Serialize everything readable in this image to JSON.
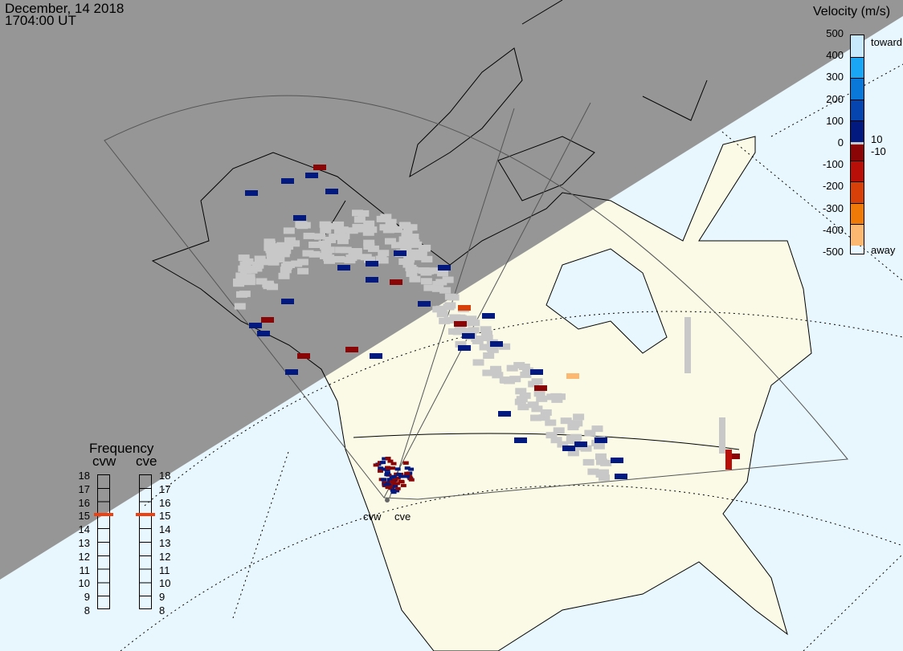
{
  "header": {
    "date": "December, 14 2018",
    "time": "1704:00 UT"
  },
  "velocity_scale": {
    "title": "Velocity (m/s)",
    "ticks": [
      "500",
      "400",
      "300",
      "200",
      "100",
      "0",
      "-100",
      "-200",
      "-300",
      "-400",
      "-500"
    ],
    "toward_label": "toward",
    "away_label": "away",
    "upper_threshold": "10",
    "lower_threshold": "-10",
    "colors": [
      "#c8e8fc",
      "#1aa6f5",
      "#0a78d8",
      "#0645b0",
      "#021a80",
      "#8a0505",
      "#b81008",
      "#d8400a",
      "#f07a08",
      "#fcb870"
    ],
    "ground_scatter_color": "#c8c8c8"
  },
  "frequency": {
    "title": "Frequency",
    "radars": [
      {
        "name": "cvw",
        "freq_mhz": 15
      },
      {
        "name": "cve",
        "freq_mhz": 15
      }
    ],
    "ticks": [
      "18",
      "17",
      "16",
      "15",
      "14",
      "13",
      "12",
      "11",
      "10",
      "9",
      "8"
    ],
    "marker_color": "#f04010"
  },
  "radar_labels": [
    "cvw",
    "cve"
  ],
  "map": {
    "ocean_color": "#e8f6fd",
    "land_color": "#fafae6",
    "night_color": "#969696"
  }
}
